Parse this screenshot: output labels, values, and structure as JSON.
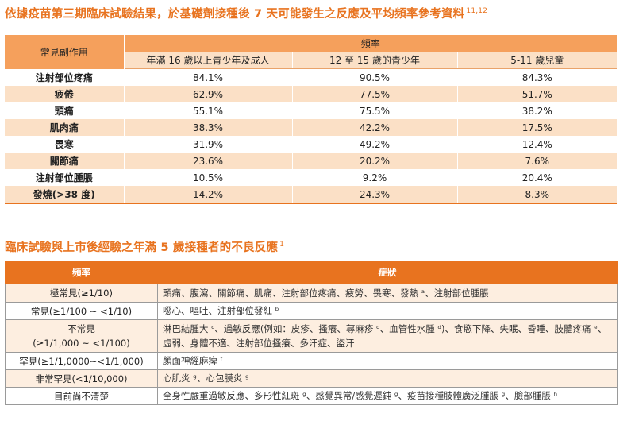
{
  "heading1": {
    "text": "依據疫苗第三期臨床試驗結果，於基礎劑接種後 7 天可能發生之反應及平均頻率參考資料",
    "sup": "11,12"
  },
  "table1": {
    "row_header": "常見副作用",
    "group_header": "頻率",
    "columns": [
      "年滿 16 歲以上青少年及成人",
      "12 至 15 歲的青少年",
      "5-11 歲兒童"
    ],
    "rows": [
      {
        "name": "注射部位疼痛",
        "v": [
          "84.1%",
          "90.5%",
          "84.3%"
        ]
      },
      {
        "name": "疲倦",
        "v": [
          "62.9%",
          "77.5%",
          "51.7%"
        ]
      },
      {
        "name": "頭痛",
        "v": [
          "55.1%",
          "75.5%",
          "38.2%"
        ]
      },
      {
        "name": "肌肉痛",
        "v": [
          "38.3%",
          "42.2%",
          "17.5%"
        ]
      },
      {
        "name": "畏寒",
        "v": [
          "31.9%",
          "49.2%",
          "12.4%"
        ]
      },
      {
        "name": "關節痛",
        "v": [
          "23.6%",
          "20.2%",
          "7.6%"
        ]
      },
      {
        "name": "注射部位腫脹",
        "v": [
          "10.5%",
          "9.2%",
          "20.4%"
        ]
      },
      {
        "name": "發燒(>38 度)",
        "v": [
          "14.2%",
          "24.3%",
          "8.3%"
        ]
      }
    ]
  },
  "heading2": {
    "text": "臨床試驗與上市後經驗之年滿 5 歲接種者的不良反應",
    "sup": "1"
  },
  "table2": {
    "col_freq": "頻率",
    "col_sym": "症狀",
    "rows": [
      {
        "freq": "極常見(≥1/10)",
        "sym": "頭痛、腹瀉、關節痛、肌痛、注射部位疼痛、疲勞、畏寒、發熱 ᵃ、注射部位腫脹"
      },
      {
        "freq": "常見(≥1/100 ~ <1/10)",
        "sym": "噁心、嘔吐、注射部位發紅 ᵇ"
      },
      {
        "freq_line1": "不常見",
        "freq_line2": "(≥1/1,000 ~ <1/100)",
        "sym": "淋巴結腫大 ᶜ、過敏反應(例如：皮疹、搔癢、蕁麻疹 ᵈ、血管性水腫 ᵈ)、食慾下降、失眠、昏睡、肢體疼痛 ᵉ、虛弱、身體不適、注射部位搔癢、多汗症、盜汗"
      },
      {
        "freq": "罕見(≥1/1,0000~<1/1,000)",
        "sym": "顏面神經麻痺 ᶠ"
      },
      {
        "freq": "非常罕見(<1/10,000)",
        "sym": "心肌炎 ᵍ、心包膜炎 ᵍ"
      },
      {
        "freq": "目前尚不清楚",
        "sym": "全身性嚴重過敏反應、多形性紅斑 ᵍ、感覺異常/感覺遲鈍 ᵍ、疫苗接種肢體廣泛腫脹 ᵍ、臉部腫脹 ʰ"
      }
    ]
  }
}
